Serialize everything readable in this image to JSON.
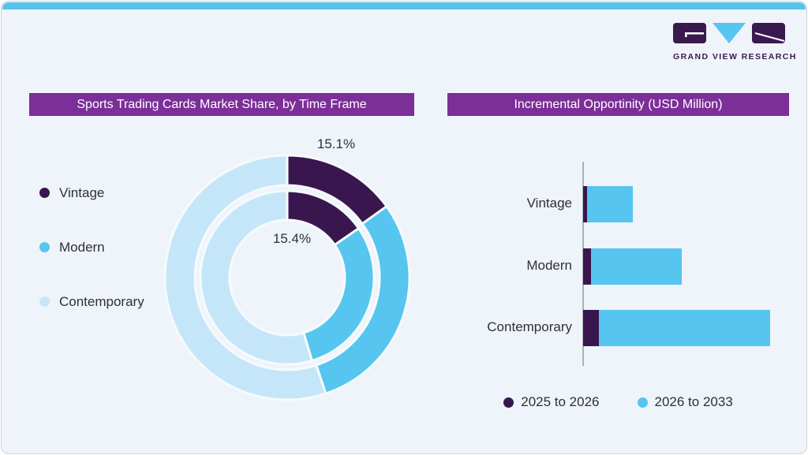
{
  "page": {
    "card_background": "#eef4f9",
    "top_strip_color": "#57c2ec",
    "border_color": "#ccd3da",
    "banner_color": "#7c2e99"
  },
  "logo": {
    "brand": "GRAND VIEW RESEARCH",
    "block_color": "#3a1a4e",
    "triangle_color": "#56c5f0"
  },
  "left_chart": {
    "title": "Sports Trading Cards Market Share, by Time Frame",
    "legend": [
      {
        "label": "Vintage",
        "color": "#3a164e"
      },
      {
        "label": "Modern",
        "color": "#56c5f0"
      },
      {
        "label": "Contemporary",
        "color": "#c5e6f8"
      }
    ]
  },
  "right_chart": {
    "title": "Incremental Opportinity (USD Million)",
    "categories": [
      "Vintage",
      "Modern",
      "Contemporary"
    ],
    "legend": [
      {
        "label": "2025 to 2026",
        "color": "#3a164e"
      },
      {
        "label": "2026 to 2033",
        "color": "#56c5f0"
      }
    ]
  },
  "chart_data": [
    {
      "type": "pie",
      "subtype": "double_ring_donut",
      "title": "Sports Trading Cards Market Share, by Time Frame",
      "categories": [
        "Vintage",
        "Modern",
        "Contemporary"
      ],
      "colors": [
        "#3a164e",
        "#56c5f0",
        "#c5e6f8"
      ],
      "series": [
        {
          "name": "outer_ring",
          "values": [
            15.1,
            29.8,
            55.1
          ]
        },
        {
          "name": "inner_ring",
          "values": [
            15.4,
            30.0,
            54.6
          ]
        }
      ],
      "data_labels_shown": [
        "15.1%",
        "15.4%"
      ],
      "note": "Only the Vintage slice of each ring carries a printed label; Modern and Contemporary values are estimated from arc angles.",
      "legend_position": "left",
      "start_angle_deg": 0,
      "direction": "clockwise"
    },
    {
      "type": "bar",
      "subtype": "horizontal_stacked",
      "title": "Incremental Opportinity (USD Million)",
      "categories": [
        "Vintage",
        "Modern",
        "Contemporary"
      ],
      "series": [
        {
          "name": "2025 to 2026",
          "color": "#3a164e",
          "values": [
            5,
            10,
            20
          ]
        },
        {
          "name": "2026 to 2033",
          "color": "#56c5f0",
          "values": [
            58,
            115,
            217
          ]
        }
      ],
      "units": "relative length (no numeric axis shown)",
      "xlabel": "",
      "ylabel": "",
      "grid": false,
      "legend_position": "bottom"
    }
  ]
}
